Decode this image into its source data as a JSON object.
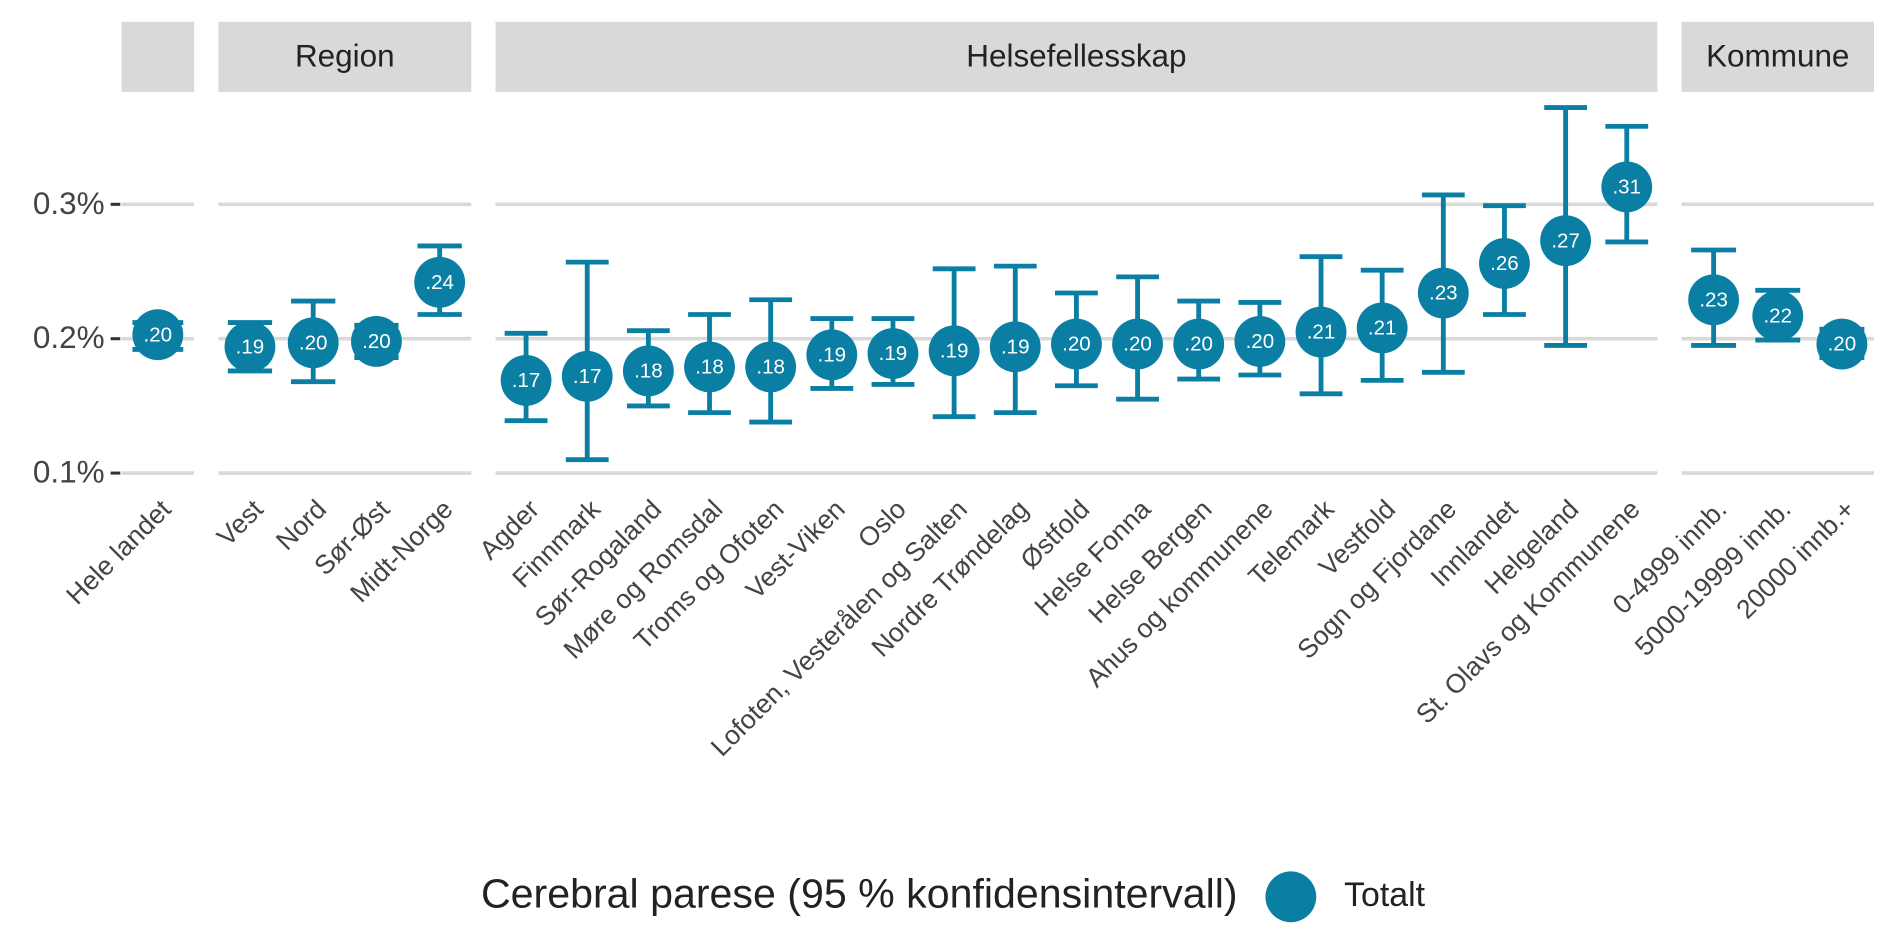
{
  "chart_data": [
    {
      "type": "errorbar",
      "color": "#0b7fa3",
      "categories": [
        "Hele landet"
      ],
      "values": [
        0.203
      ],
      "value_labels": [
        ".20"
      ],
      "lower": [
        0.192
      ],
      "upper": [
        0.212
      ],
      "ylim": [
        0.09,
        0.38
      ],
      "yticks": [
        {
          "value": 0.1,
          "label": "0.1%"
        },
        {
          "value": 0.2,
          "label": "0.2%"
        },
        {
          "value": 0.3,
          "label": "0.3%"
        }
      ],
      "grid": true
    },
    {
      "type": "errorbar",
      "title": "Region",
      "color": "#0b7fa3",
      "categories": [
        "Vest",
        "Nord",
        "Sør-Øst",
        "Midt-Norge"
      ],
      "values": [
        0.194,
        0.197,
        0.198,
        0.242
      ],
      "value_labels": [
        ".19",
        ".20",
        ".20",
        ".24"
      ],
      "lower": [
        0.176,
        0.168,
        0.186,
        0.218
      ],
      "upper": [
        0.212,
        0.228,
        0.21,
        0.269
      ],
      "ylim": [
        0.09,
        0.38
      ],
      "yticks": [
        0.1,
        0.2,
        0.3
      ],
      "grid": true
    },
    {
      "type": "errorbar",
      "title": "Helsefellesskap",
      "color": "#0b7fa3",
      "categories": [
        "Agder",
        "Finnmark",
        "Sør-Rogaland",
        "Møre og Romsdal",
        "Troms og Ofoten",
        "Vest-Viken",
        "Oslo",
        "Lofoten, Vesterålen og Salten",
        "Nordre Trøndelag",
        "Østfold",
        "Helse Fonna",
        "Helse Bergen",
        "Ahus og kommunene",
        "Telemark",
        "Vestfold",
        "Sogn og Fjordane",
        "Innlandet",
        "Helgeland",
        "St. Olavs og Kommunene"
      ],
      "values": [
        0.169,
        0.172,
        0.176,
        0.179,
        0.179,
        0.188,
        0.189,
        0.191,
        0.194,
        0.196,
        0.196,
        0.196,
        0.198,
        0.205,
        0.208,
        0.234,
        0.256,
        0.273,
        0.313
      ],
      "value_labels": [
        ".17",
        ".17",
        ".18",
        ".18",
        ".18",
        ".19",
        ".19",
        ".19",
        ".19",
        ".20",
        ".20",
        ".20",
        ".20",
        ".21",
        ".21",
        ".23",
        ".26",
        ".27",
        ".31"
      ],
      "lower": [
        0.139,
        0.11,
        0.15,
        0.145,
        0.138,
        0.163,
        0.166,
        0.142,
        0.145,
        0.165,
        0.155,
        0.17,
        0.173,
        0.159,
        0.169,
        0.175,
        0.218,
        0.195,
        0.272
      ],
      "upper": [
        0.204,
        0.257,
        0.206,
        0.218,
        0.229,
        0.215,
        0.215,
        0.252,
        0.254,
        0.234,
        0.246,
        0.228,
        0.227,
        0.261,
        0.251,
        0.307,
        0.299,
        0.372,
        0.358
      ],
      "ylim": [
        0.09,
        0.38
      ],
      "yticks": [
        0.1,
        0.2,
        0.3
      ],
      "grid": true
    },
    {
      "type": "errorbar",
      "title": "Kommune",
      "color": "#0b7fa3",
      "categories": [
        "0-4999 innb.",
        "5000-19999 innb.",
        "20000 innb.+"
      ],
      "values": [
        0.229,
        0.217,
        0.196
      ],
      "value_labels": [
        ".23",
        ".22",
        ".20"
      ],
      "lower": [
        0.195,
        0.199,
        0.186
      ],
      "upper": [
        0.266,
        0.236,
        0.207
      ],
      "ylim": [
        0.09,
        0.38
      ],
      "yticks": [
        0.1,
        0.2,
        0.3
      ],
      "grid": true
    }
  ],
  "legend": {
    "title": "Cerebral parese (95 % konfidensintervall)",
    "entries": [
      {
        "name": "Totalt",
        "color": "#0b7fa3"
      }
    ]
  }
}
